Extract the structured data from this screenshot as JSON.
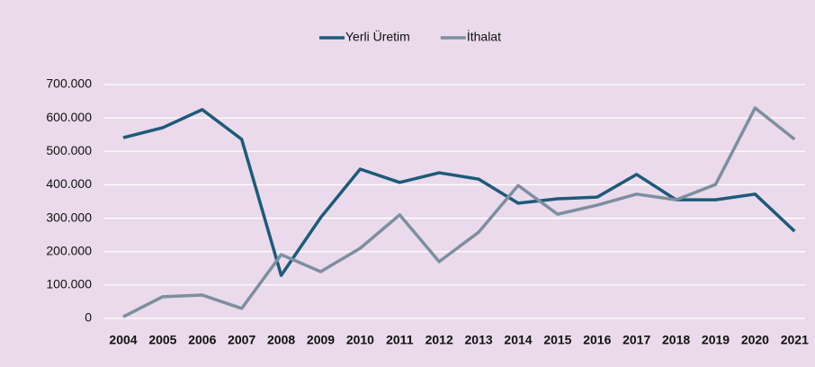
{
  "chart_data": {
    "type": "line",
    "categories": [
      "2004",
      "2005",
      "2006",
      "2007",
      "2008",
      "2009",
      "2010",
      "2011",
      "2012",
      "2013",
      "2014",
      "2015",
      "2016",
      "2017",
      "2018",
      "2019",
      "2020",
      "2021"
    ],
    "series": [
      {
        "name": "Yerli Üretim",
        "color": "#1d5a7a",
        "values": [
          541000,
          571000,
          625000,
          536000,
          129000,
          302000,
          447000,
          407000,
          436000,
          417000,
          345000,
          358000,
          363000,
          431000,
          355000,
          355000,
          372000,
          261000
        ]
      },
      {
        "name": "İthalat",
        "color": "#7c8fa0",
        "values": [
          5000,
          65000,
          70000,
          30000,
          191000,
          140000,
          210000,
          310000,
          170000,
          258000,
          398000,
          312000,
          339000,
          372000,
          355000,
          401000,
          630000,
          536000
        ]
      }
    ],
    "ylim": [
      0,
      700000
    ],
    "yticks": [
      0,
      {
        "value": 100000,
        "label": "100.000"
      },
      {
        "value": 200000,
        "label": "200.000"
      },
      {
        "value": 300000,
        "label": "300.000"
      },
      {
        "value": 400000,
        "label": "400.000"
      },
      {
        "value": 500000,
        "label": "500.000"
      },
      {
        "value": 600000,
        "label": "600.000"
      },
      {
        "value": 700000,
        "label": "700.000"
      }
    ],
    "grid": true,
    "legend": "top"
  }
}
